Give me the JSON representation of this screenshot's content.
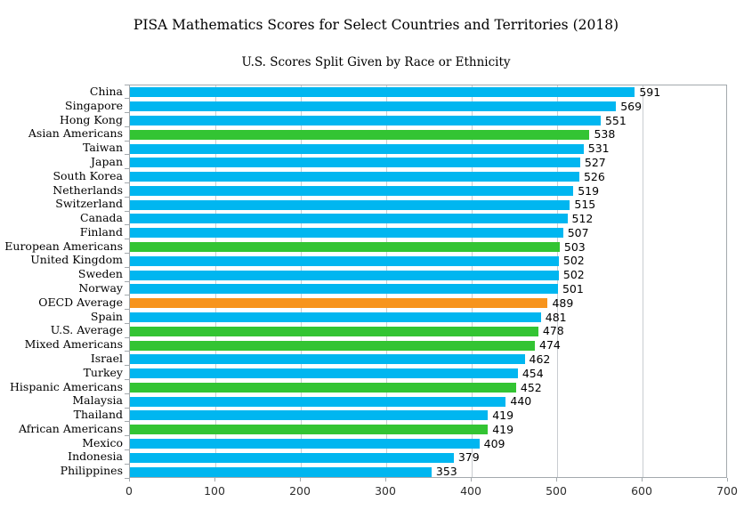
{
  "chart_data": {
    "type": "bar",
    "orientation": "horizontal",
    "title": "PISA Mathematics Scores for Select Countries and Territories (2018)",
    "subtitle": "U.S. Scores Split Given by Race or Ethnicity",
    "xlabel": "",
    "ylabel": "",
    "xlim": [
      0,
      700
    ],
    "x_ticks": [
      0,
      100,
      200,
      300,
      400,
      500,
      600,
      700
    ],
    "grid": true,
    "legend": "none",
    "value_labels_shown": true,
    "group_colors": {
      "country": "#00B6F0",
      "us_ethnicity": "#33C433",
      "oecd_average": "#F7941D"
    },
    "axis_color": "#A3A9AD",
    "gridline_color": "#C9CDD1",
    "text_color": "#000000",
    "bars": [
      {
        "label": "China",
        "value": 591,
        "group": "country"
      },
      {
        "label": "Singapore",
        "value": 569,
        "group": "country"
      },
      {
        "label": "Hong Kong",
        "value": 551,
        "group": "country"
      },
      {
        "label": "Asian Americans",
        "value": 538,
        "group": "us_ethnicity"
      },
      {
        "label": "Taiwan",
        "value": 531,
        "group": "country"
      },
      {
        "label": "Japan",
        "value": 527,
        "group": "country"
      },
      {
        "label": "South Korea",
        "value": 526,
        "group": "country"
      },
      {
        "label": "Netherlands",
        "value": 519,
        "group": "country"
      },
      {
        "label": "Switzerland",
        "value": 515,
        "group": "country"
      },
      {
        "label": "Canada",
        "value": 512,
        "group": "country"
      },
      {
        "label": "Finland",
        "value": 507,
        "group": "country"
      },
      {
        "label": "European Americans",
        "value": 503,
        "group": "us_ethnicity"
      },
      {
        "label": "United Kingdom",
        "value": 502,
        "group": "country"
      },
      {
        "label": "Sweden",
        "value": 502,
        "group": "country"
      },
      {
        "label": "Norway",
        "value": 501,
        "group": "country"
      },
      {
        "label": "OECD Average",
        "value": 489,
        "group": "oecd_average"
      },
      {
        "label": "Spain",
        "value": 481,
        "group": "country"
      },
      {
        "label": "U.S. Average",
        "value": 478,
        "group": "us_ethnicity"
      },
      {
        "label": "Mixed Americans",
        "value": 474,
        "group": "us_ethnicity"
      },
      {
        "label": "Israel",
        "value": 462,
        "group": "country"
      },
      {
        "label": "Turkey",
        "value": 454,
        "group": "country"
      },
      {
        "label": "Hispanic Americans",
        "value": 452,
        "group": "us_ethnicity"
      },
      {
        "label": "Malaysia",
        "value": 440,
        "group": "country"
      },
      {
        "label": "Thailand",
        "value": 419,
        "group": "country"
      },
      {
        "label": "African Americans",
        "value": 419,
        "group": "us_ethnicity"
      },
      {
        "label": "Mexico",
        "value": 409,
        "group": "country"
      },
      {
        "label": "Indonesia",
        "value": 379,
        "group": "country"
      },
      {
        "label": "Philippines",
        "value": 353,
        "group": "country"
      }
    ]
  }
}
